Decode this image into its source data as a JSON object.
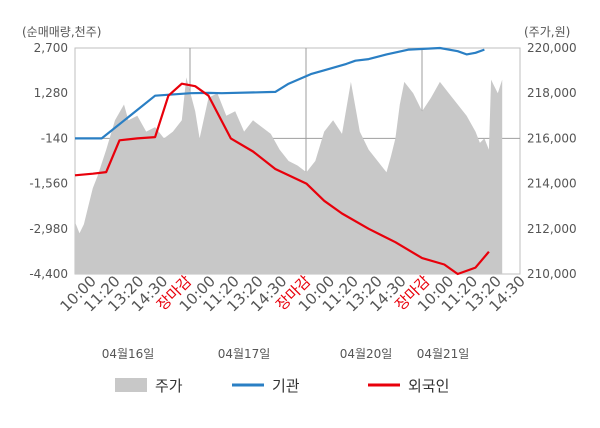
{
  "chart_data": {
    "type": "line",
    "left_axis_label": "(순매매량,천주)",
    "right_axis_label": "(주가,원)",
    "left_ticks": [
      "2,700",
      "1,280",
      "-140",
      "-1,560",
      "-2,980",
      "-4,400"
    ],
    "right_ticks": [
      "220,000",
      "218,000",
      "216,000",
      "214,000",
      "212,000",
      "210,000"
    ],
    "left_range": [
      -4400,
      2700
    ],
    "right_range": [
      210000,
      220000
    ],
    "x_ticks": [
      "10:00",
      "11:20",
      "13:20",
      "14:30",
      "장마감",
      "10:00",
      "11:20",
      "13:20",
      "14:30",
      "장마감",
      "10:00",
      "11:20",
      "13:20",
      "14:30",
      "장마감",
      "10:00",
      "11:20",
      "13:20",
      "14:30"
    ],
    "close_label": "장마감",
    "dates": [
      "04월16일",
      "04월17일",
      "04월20일",
      "04월21일"
    ],
    "series": [
      {
        "name": "주가",
        "type": "area",
        "axis": "right",
        "color": "#c8c8c8",
        "x": [
          0,
          0.01,
          0.02,
          0.03,
          0.04,
          0.05,
          0.07,
          0.09,
          0.11,
          0.12,
          0.14,
          0.16,
          0.18,
          0.2,
          0.22,
          0.24,
          0.25,
          0.27,
          0.28,
          0.3,
          0.32,
          0.34,
          0.36,
          0.38,
          0.4,
          0.42,
          0.44,
          0.46,
          0.48,
          0.5,
          0.52,
          0.54,
          0.56,
          0.58,
          0.6,
          0.62,
          0.64,
          0.66,
          0.68,
          0.7,
          0.71,
          0.72,
          0.73,
          0.74,
          0.76,
          0.78,
          0.8,
          0.82,
          0.84,
          0.86,
          0.88,
          0.9,
          0.91,
          0.92,
          0.93,
          0.935,
          0.94,
          0.95,
          0.96
        ],
        "values": [
          212300,
          211800,
          212200,
          213000,
          213800,
          214300,
          215500,
          216800,
          217500,
          216800,
          217000,
          216300,
          216500,
          216000,
          216300,
          216800,
          218700,
          217200,
          216000,
          217800,
          218000,
          217000,
          217200,
          216300,
          216800,
          216500,
          216200,
          215500,
          215000,
          214800,
          214500,
          215000,
          216300,
          216800,
          216200,
          218500,
          216300,
          215500,
          215000,
          214500,
          215200,
          216000,
          217500,
          218500,
          218000,
          217200,
          217800,
          218500,
          218000,
          217500,
          217000,
          216300,
          215800,
          216000,
          215500,
          218600,
          218400,
          218000,
          218600
        ]
      },
      {
        "name": "기관",
        "type": "line",
        "axis": "left",
        "color": "#2a7fc4",
        "x": [
          0,
          0.06,
          0.18,
          0.26,
          0.3,
          0.33,
          0.45,
          0.48,
          0.53,
          0.56,
          0.61,
          0.63,
          0.66,
          0.7,
          0.75,
          0.82,
          0.86,
          0.88,
          0.9,
          0.92
        ],
        "values": [
          -140,
          -140,
          1200,
          1280,
          1290,
          1280,
          1320,
          1580,
          1880,
          2000,
          2200,
          2300,
          2350,
          2500,
          2650,
          2700,
          2600,
          2500,
          2550,
          2650
        ]
      },
      {
        "name": "외국인",
        "type": "line",
        "axis": "left",
        "color": "#e8000b",
        "x": [
          0,
          0.04,
          0.07,
          0.1,
          0.14,
          0.18,
          0.21,
          0.24,
          0.27,
          0.3,
          0.35,
          0.4,
          0.45,
          0.48,
          0.52,
          0.56,
          0.6,
          0.66,
          0.72,
          0.78,
          0.83,
          0.86,
          0.9,
          0.93
        ],
        "values": [
          -1300,
          -1250,
          -1200,
          -200,
          -140,
          -100,
          1200,
          1580,
          1500,
          1200,
          -140,
          -550,
          -1100,
          -1300,
          -1560,
          -2100,
          -2500,
          -2980,
          -3400,
          -3900,
          -4100,
          -4400,
          -4200,
          -3700
        ]
      }
    ]
  }
}
